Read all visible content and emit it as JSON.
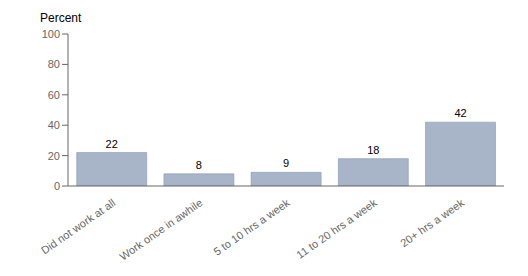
{
  "chart_data": {
    "type": "bar",
    "ylabel": "Percent",
    "categories": [
      "Did not work at all",
      "Work once in awhile",
      "5 to 10 hrs a week",
      "11 to 20 hrs a week",
      "20+ hrs a week"
    ],
    "values": [
      22,
      8,
      9,
      18,
      42
    ],
    "color": "#a8b4c8",
    "ylim": [
      0,
      100
    ],
    "yticks": [
      0,
      20,
      40,
      60,
      80,
      100
    ],
    "grid": false,
    "data_labels": true
  }
}
